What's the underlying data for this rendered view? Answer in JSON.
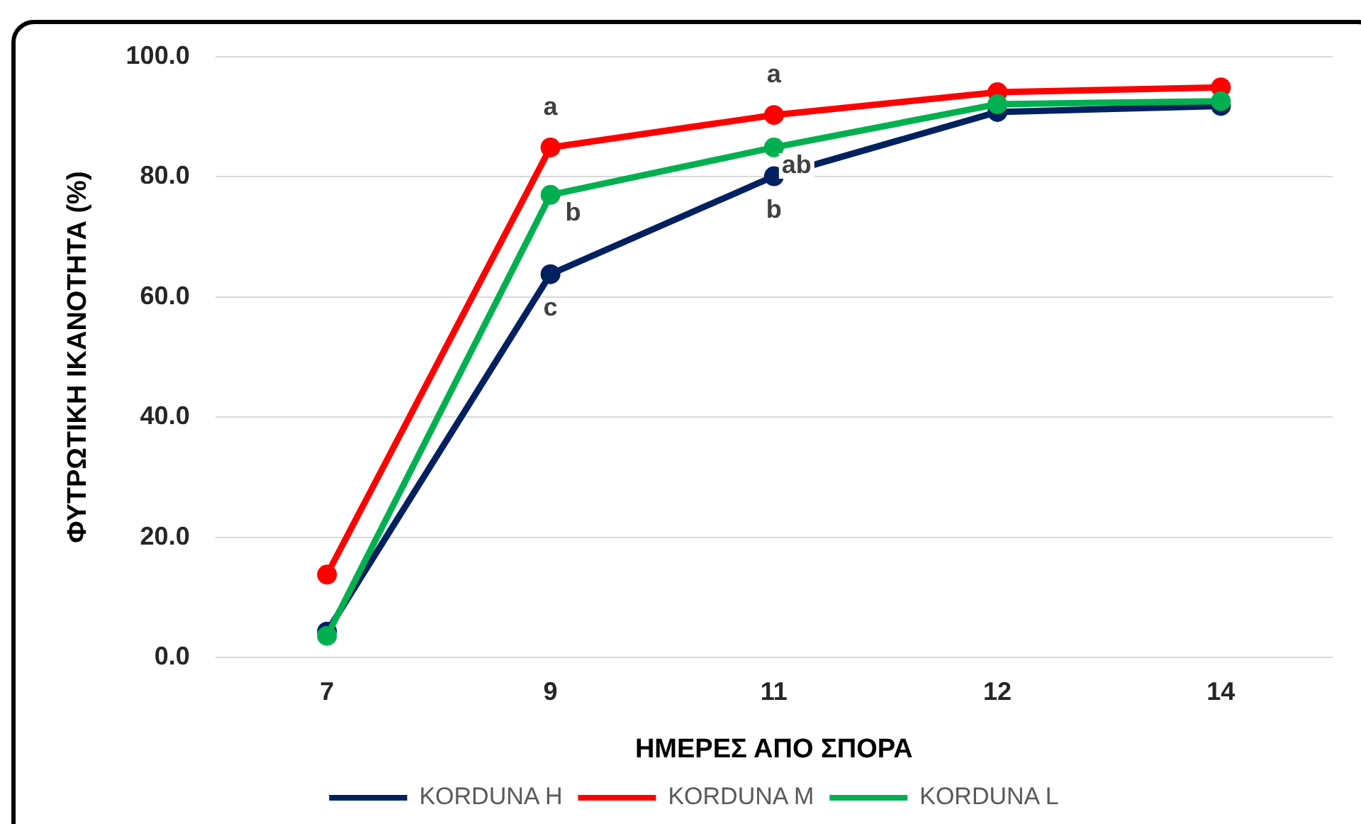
{
  "chart_data": {
    "type": "line",
    "xlabel": "ΗΜΕΡΕΣ ΑΠΟ ΣΠΟΡΑ",
    "ylabel": "ΦΥΤΡΩΤΙΚΗ ΙΚΑΝΟΤΗΤΑ (%)",
    "categories": [
      "7",
      "9",
      "11",
      "12",
      "14"
    ],
    "series": [
      {
        "name": "KORDUNA H",
        "color": "#002060",
        "values": [
          4.3,
          63.8,
          80.1,
          90.8,
          91.8
        ]
      },
      {
        "name": "KORDUNA M",
        "color": "#ff0000",
        "values": [
          13.8,
          84.9,
          90.3,
          94.1,
          94.9
        ]
      },
      {
        "name": "KORDUNA L",
        "color": "#00b050",
        "values": [
          3.6,
          77.0,
          84.9,
          92.1,
          92.6
        ]
      }
    ],
    "ylim": [
      0,
      100
    ],
    "yticks": [
      {
        "value": 0,
        "label": "0.0"
      },
      {
        "value": 20,
        "label": "20.0"
      },
      {
        "value": 40,
        "label": "40.0"
      },
      {
        "value": 60,
        "label": "60.0"
      },
      {
        "value": 80,
        "label": "80.0"
      },
      {
        "value": 100,
        "label": "100.0"
      }
    ],
    "annotations": [
      {
        "text": "a",
        "x": "9",
        "y": 84.9
      },
      {
        "text": "b",
        "x": "9",
        "y": 77.0
      },
      {
        "text": "c",
        "x": "9",
        "y": 63.8
      },
      {
        "text": "a",
        "x": "11",
        "y": 90.3
      },
      {
        "text": "ab",
        "x": "11",
        "y": 84.9
      },
      {
        "text": "b",
        "x": "11",
        "y": 80.1
      }
    ],
    "grid": "y",
    "legend": "bottom",
    "marker": "circle",
    "line_style": "solid"
  }
}
